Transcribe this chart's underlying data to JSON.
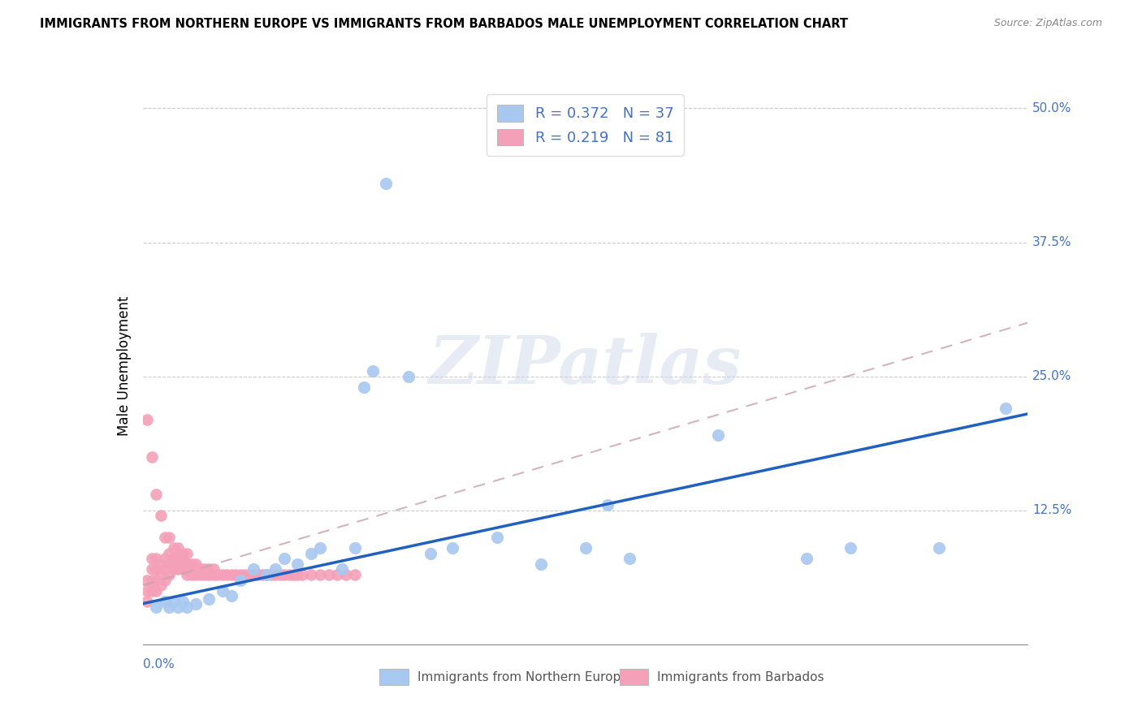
{
  "title": "IMMIGRANTS FROM NORTHERN EUROPE VS IMMIGRANTS FROM BARBADOS MALE UNEMPLOYMENT CORRELATION CHART",
  "source": "Source: ZipAtlas.com",
  "ylabel": "Male Unemployment",
  "right_yticks": [
    "50.0%",
    "37.5%",
    "25.0%",
    "12.5%"
  ],
  "right_ytick_vals": [
    0.5,
    0.375,
    0.25,
    0.125
  ],
  "xlim": [
    0.0,
    0.2
  ],
  "ylim": [
    0.0,
    0.52
  ],
  "blue_color": "#a8c8f0",
  "pink_color": "#f4a0b8",
  "blue_line_color": "#2060c0",
  "pink_line_color": "#c8a0b0",
  "text_color": "#4472c4",
  "legend_label_blue": "R = 0.372   N = 37",
  "legend_label_pink": "R = 0.219   N = 81",
  "watermark": "ZIPatlas",
  "blue_x": [
    0.003,
    0.005,
    0.006,
    0.007,
    0.008,
    0.009,
    0.01,
    0.012,
    0.015,
    0.018,
    0.02,
    0.022,
    0.025,
    0.028,
    0.03,
    0.032,
    0.035,
    0.038,
    0.04,
    0.045,
    0.048,
    0.05,
    0.052,
    0.055,
    0.06,
    0.065,
    0.07,
    0.08,
    0.09,
    0.1,
    0.105,
    0.11,
    0.13,
    0.15,
    0.16,
    0.18,
    0.195
  ],
  "blue_y": [
    0.035,
    0.04,
    0.035,
    0.04,
    0.035,
    0.04,
    0.035,
    0.038,
    0.042,
    0.05,
    0.045,
    0.06,
    0.07,
    0.065,
    0.07,
    0.08,
    0.075,
    0.085,
    0.09,
    0.07,
    0.09,
    0.24,
    0.255,
    0.43,
    0.25,
    0.085,
    0.09,
    0.1,
    0.075,
    0.09,
    0.13,
    0.08,
    0.195,
    0.08,
    0.09,
    0.09,
    0.22
  ],
  "pink_x": [
    0.001,
    0.001,
    0.001,
    0.001,
    0.002,
    0.002,
    0.002,
    0.002,
    0.002,
    0.003,
    0.003,
    0.003,
    0.003,
    0.003,
    0.004,
    0.004,
    0.004,
    0.004,
    0.005,
    0.005,
    0.005,
    0.005,
    0.006,
    0.006,
    0.006,
    0.006,
    0.007,
    0.007,
    0.007,
    0.007,
    0.008,
    0.008,
    0.008,
    0.008,
    0.009,
    0.009,
    0.009,
    0.01,
    0.01,
    0.01,
    0.01,
    0.011,
    0.011,
    0.011,
    0.012,
    0.012,
    0.012,
    0.013,
    0.013,
    0.014,
    0.014,
    0.015,
    0.015,
    0.016,
    0.016,
    0.017,
    0.018,
    0.019,
    0.02,
    0.021,
    0.022,
    0.023,
    0.024,
    0.025,
    0.026,
    0.027,
    0.028,
    0.029,
    0.03,
    0.031,
    0.032,
    0.033,
    0.034,
    0.035,
    0.036,
    0.038,
    0.04,
    0.042,
    0.044,
    0.046,
    0.048
  ],
  "pink_y": [
    0.04,
    0.05,
    0.06,
    0.21,
    0.05,
    0.06,
    0.07,
    0.08,
    0.175,
    0.05,
    0.06,
    0.07,
    0.08,
    0.14,
    0.055,
    0.065,
    0.075,
    0.12,
    0.06,
    0.07,
    0.08,
    0.1,
    0.065,
    0.075,
    0.085,
    0.1,
    0.07,
    0.075,
    0.08,
    0.09,
    0.07,
    0.075,
    0.08,
    0.09,
    0.07,
    0.075,
    0.085,
    0.065,
    0.07,
    0.075,
    0.085,
    0.065,
    0.07,
    0.075,
    0.065,
    0.07,
    0.075,
    0.065,
    0.07,
    0.065,
    0.07,
    0.065,
    0.07,
    0.065,
    0.07,
    0.065,
    0.065,
    0.065,
    0.065,
    0.065,
    0.065,
    0.065,
    0.065,
    0.065,
    0.065,
    0.065,
    0.065,
    0.065,
    0.065,
    0.065,
    0.065,
    0.065,
    0.065,
    0.065,
    0.065,
    0.065,
    0.065,
    0.065,
    0.065,
    0.065,
    0.065
  ],
  "blue_trend_x": [
    0.0,
    0.2
  ],
  "blue_trend_y": [
    0.038,
    0.215
  ],
  "pink_trend_x": [
    0.0,
    0.2
  ],
  "pink_trend_y": [
    0.055,
    0.3
  ],
  "grid_color": "#cccccc",
  "spine_color": "#888888"
}
